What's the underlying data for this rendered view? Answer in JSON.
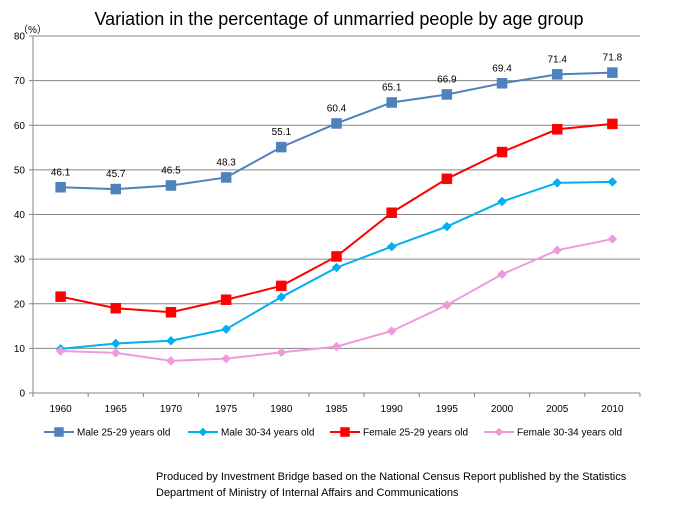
{
  "chart_data": {
    "type": "line",
    "title": "Variation in the percentage of unmarried people by age group",
    "unit_label": "（%）",
    "x": [
      "1960",
      "1965",
      "1970",
      "1975",
      "1980",
      "1985",
      "1990",
      "1995",
      "2000",
      "2005",
      "2010"
    ],
    "ylim": [
      0,
      80
    ],
    "yticks": [
      0,
      10,
      20,
      30,
      40,
      50,
      60,
      70,
      80
    ],
    "grid": true,
    "legend_position": "bottom",
    "series": [
      {
        "name": "Male 25-29 years old",
        "color": "#4F81BD",
        "marker": "square",
        "values": [
          46.1,
          45.7,
          46.5,
          48.3,
          55.1,
          60.4,
          65.1,
          66.9,
          69.4,
          71.4,
          71.8
        ],
        "show_labels": true
      },
      {
        "name": "Male 30-34 years old",
        "color": "#00B0F0",
        "marker": "diamond",
        "values": [
          9.9,
          11.1,
          11.7,
          14.3,
          21.5,
          28.1,
          32.8,
          37.3,
          42.9,
          47.1,
          47.3
        ],
        "show_labels": false
      },
      {
        "name": "Female 25-29 years old",
        "color": "#FF0000",
        "marker": "square",
        "values": [
          21.6,
          19.0,
          18.1,
          20.9,
          24.0,
          30.6,
          40.4,
          48.0,
          54.0,
          59.1,
          60.3
        ],
        "show_labels": false
      },
      {
        "name": "Female 30-34 years old",
        "color": "#F09BD9",
        "marker": "diamond",
        "values": [
          9.4,
          9.0,
          7.2,
          7.7,
          9.1,
          10.4,
          13.9,
          19.7,
          26.6,
          32.0,
          34.5
        ],
        "show_labels": false
      }
    ]
  },
  "source": {
    "line1": "Produced by Investment Bridge  based on the National Census Report published by the Statistics",
    "line2": "Department of Ministry of Internal Affairs and Communications"
  }
}
